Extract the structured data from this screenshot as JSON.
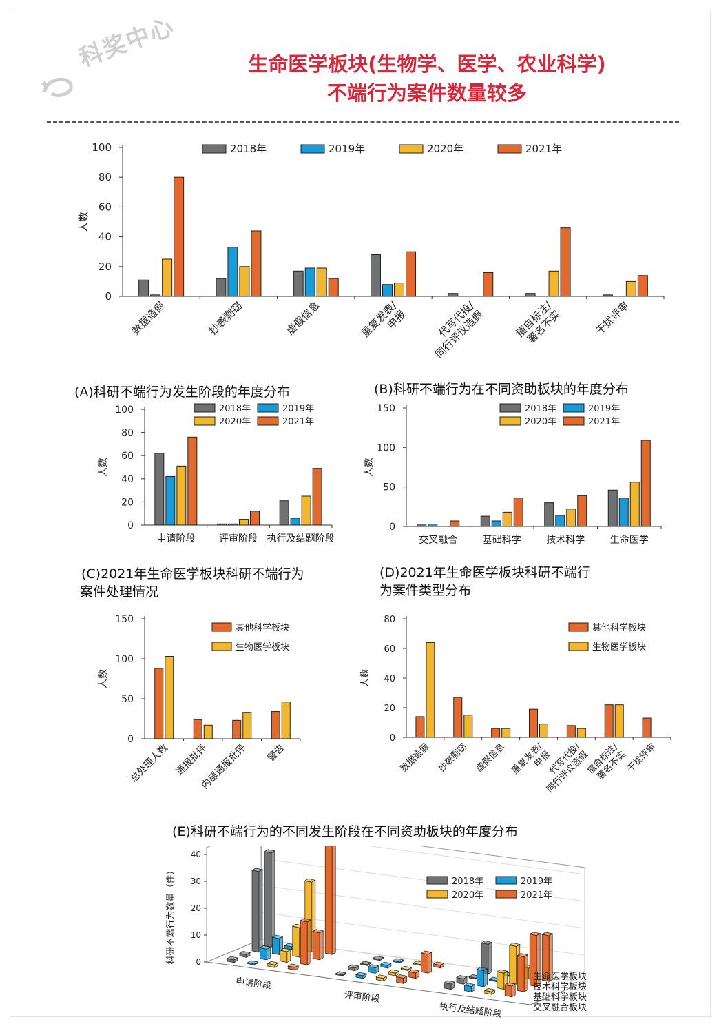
{
  "watermark": {
    "text": "科奖中心"
  },
  "headline": {
    "line1": "生命医学板块(生物学、医学、农业科学)",
    "line2": "不端行为案件数量较多"
  },
  "captions": {
    "A": "(A)科研不端行为发生阶段的年度分布",
    "B": "(B)科研不端行为在不同资助板块的年度分布",
    "C_line1": "(C)2021年生命医学板块科研不端行为",
    "C_line2": "案件处理情况",
    "D_line1": "(D)2021年生命医学板块科研不端行",
    "D_line2": "为案件类型分布",
    "E": "(E)科研不端行为的不同发生阶段在不同资助板块的年度分布"
  },
  "colors": {
    "y2018": "#707173",
    "y2019": "#1a9bd6",
    "y2020": "#f2b731",
    "y2021": "#e36a2e",
    "other": "#e36a2e",
    "bio": "#f2b731",
    "title": "#d6283a"
  },
  "chart_data": [
    {
      "id": "top",
      "type": "bar",
      "ylabel": "人数",
      "ylim": [
        0,
        100
      ],
      "yticks": [
        0,
        20,
        40,
        60,
        80,
        100
      ],
      "categories": [
        "数据造假",
        "抄袭剽窃",
        "虚假信息",
        "重复发表/申报",
        "代写代投/同行评议造假",
        "擅自标注/署名不实",
        "干扰评审"
      ],
      "category_lines": [
        [
          "数据造假"
        ],
        [
          "抄袭剽窃"
        ],
        [
          "虚假信息"
        ],
        [
          "重复发表/",
          "申报"
        ],
        [
          "代写代投/",
          "同行评议造假"
        ],
        [
          "擅自标注/",
          "署名不实"
        ],
        [
          "干扰评审"
        ]
      ],
      "series": [
        {
          "name": "2018年",
          "values": [
            11,
            12,
            17,
            28,
            2,
            2,
            1
          ]
        },
        {
          "name": "2019年",
          "values": [
            1,
            33,
            19,
            8,
            0,
            0,
            0
          ]
        },
        {
          "name": "2020年",
          "values": [
            25,
            20,
            19,
            9,
            0,
            17,
            10
          ]
        },
        {
          "name": "2021年",
          "values": [
            80,
            44,
            12,
            30,
            16,
            46,
            14
          ]
        }
      ]
    },
    {
      "id": "A",
      "type": "bar",
      "ylabel": "人数",
      "ylim": [
        0,
        100
      ],
      "yticks": [
        0,
        20,
        40,
        60,
        80,
        100
      ],
      "categories": [
        "申请阶段",
        "评审阶段",
        "执行及结题阶段"
      ],
      "series": [
        {
          "name": "2018年",
          "values": [
            62,
            1,
            21
          ]
        },
        {
          "name": "2019年",
          "values": [
            42,
            1,
            6
          ]
        },
        {
          "name": "2020年",
          "values": [
            51,
            5,
            25
          ]
        },
        {
          "name": "2021年",
          "values": [
            76,
            12,
            49
          ]
        }
      ]
    },
    {
      "id": "B",
      "type": "bar",
      "ylabel": "人数",
      "ylim": [
        0,
        150
      ],
      "yticks": [
        0,
        50,
        100,
        150
      ],
      "categories": [
        "交叉融合",
        "基础科学",
        "技术科学",
        "生命医学"
      ],
      "series": [
        {
          "name": "2018年",
          "values": [
            3,
            13,
            30,
            46
          ]
        },
        {
          "name": "2019年",
          "values": [
            3,
            7,
            14,
            36
          ]
        },
        {
          "name": "2020年",
          "values": [
            0,
            18,
            22,
            56
          ]
        },
        {
          "name": "2021年",
          "values": [
            7,
            36,
            39,
            109
          ]
        }
      ]
    },
    {
      "id": "C",
      "type": "bar",
      "ylabel": "人数",
      "ylim": [
        0,
        150
      ],
      "yticks": [
        0,
        50,
        100,
        150
      ],
      "categories": [
        "总处理人数",
        "通报批评",
        "内部通报批评",
        "警告"
      ],
      "series": [
        {
          "name": "其他科学板块",
          "values": [
            88,
            24,
            23,
            34
          ]
        },
        {
          "name": "生物医学板块",
          "values": [
            103,
            17,
            33,
            46
          ]
        }
      ]
    },
    {
      "id": "D",
      "type": "bar",
      "ylabel": "人数",
      "ylim": [
        0,
        80
      ],
      "yticks": [
        0,
        20,
        40,
        60,
        80
      ],
      "categories": [
        "数据造假",
        "抄袭剽窃",
        "虚假信息",
        "重复发表/申报",
        "代写代投/同行评议造假",
        "擅自标注/署名不实",
        "干扰评审"
      ],
      "category_lines": [
        [
          "数据造假"
        ],
        [
          "抄袭剽窃"
        ],
        [
          "虚假信息"
        ],
        [
          "重复发表/",
          "申报"
        ],
        [
          "代写代投/",
          "同行评议造假"
        ],
        [
          "擅自标注/",
          "署名不实"
        ],
        [
          "干扰评审"
        ]
      ],
      "series": [
        {
          "name": "其他科学板块",
          "values": [
            14,
            27,
            6,
            19,
            8,
            22,
            13
          ]
        },
        {
          "name": "生物医学板块",
          "values": [
            64,
            15,
            6,
            9,
            6,
            22,
            0
          ]
        }
      ]
    },
    {
      "id": "E",
      "type": "bar3d",
      "zlabel": "科研不端行为数量（件）",
      "zticks": [
        0,
        10,
        20,
        30,
        40
      ],
      "stages": [
        "申请阶段",
        "评审阶段",
        "执行及结题阶段"
      ],
      "sectors": [
        "交叉融合板块",
        "基础科学板块",
        "技术科学板块",
        "生命医学板块"
      ],
      "legend": [
        "2018年",
        "2019年",
        "2020年",
        "2021年"
      ],
      "values": {
        "生命医学板块": {
          "申请阶段": [
            35,
            1,
            26,
            42
          ],
          "评审阶段": [
            0,
            0,
            0,
            1
          ],
          "执行及结题阶段": [
            11,
            0,
            4,
            17
          ]
        },
        "技术科学板块": {
          "申请阶段": [
            30,
            6,
            11,
            10
          ],
          "评审阶段": [
            0,
            1,
            0,
            7
          ],
          "执行及结题阶段": [
            0,
            0,
            14,
            19
          ]
        },
        "基础科学板块": {
          "申请阶段": [
            1,
            4,
            4,
            16
          ],
          "评审阶段": [
            1,
            2,
            1,
            2
          ],
          "执行及结题阶段": [
            2,
            6,
            6,
            13
          ]
        },
        "交叉融合板块": {
          "申请阶段": [
            1,
            0,
            1,
            1
          ],
          "评审阶段": [
            0,
            1,
            1,
            2
          ],
          "执行及结题阶段": [
            2,
            2,
            1,
            4
          ]
        }
      }
    }
  ]
}
